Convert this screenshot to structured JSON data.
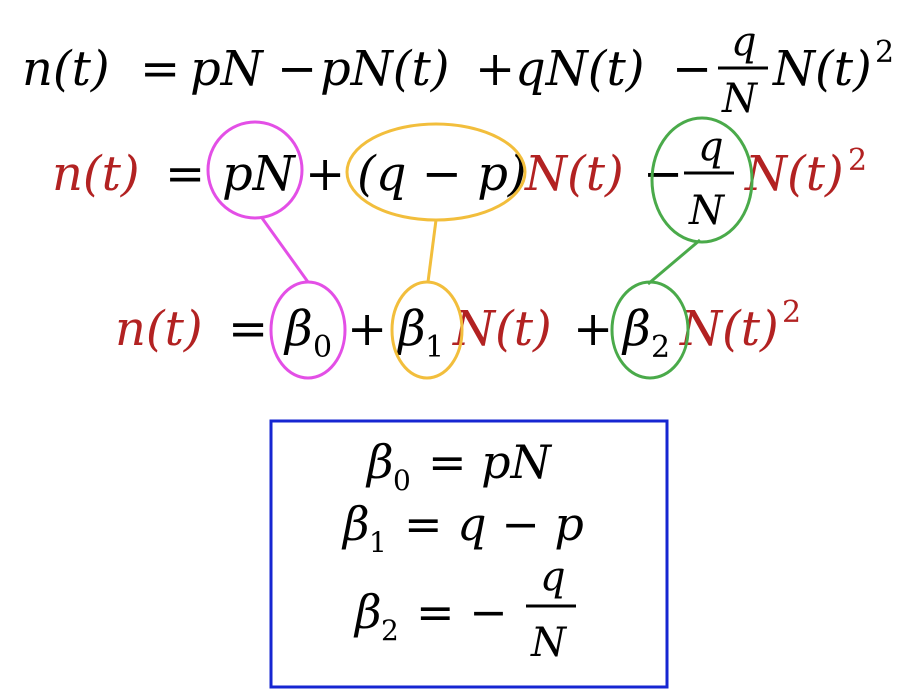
{
  "colors": {
    "black": "#000000",
    "red": "#b22222",
    "magenta": "#e34fe6",
    "orange": "#f2be3c",
    "green": "#4aaa4a",
    "box": "#1626d2"
  },
  "line1": {
    "lhs": "n(t)",
    "eq": "=",
    "t1": "pN",
    "op1": "−",
    "t2": "pN(t)",
    "op2": "+",
    "t3": "qN(t)",
    "op3": "−",
    "frac_num": "q",
    "frac_den": "N",
    "t4": "N(t)",
    "exp": "2"
  },
  "line2": {
    "lhs": "n(t)",
    "eq": "=",
    "t1": "pN",
    "op1": "+",
    "t2": "(q − p)",
    "t3": "N(t)",
    "op2": "−",
    "frac_num": "q",
    "frac_den": "N",
    "t4": "N(t)",
    "exp": "2"
  },
  "line3": {
    "lhs": "n(t)",
    "eq": "=",
    "b": "β",
    "sub0": "0",
    "op1": "+",
    "sub1": "1",
    "t1": "N(t)",
    "op2": "+",
    "sub2": "2",
    "t2": "N(t)",
    "exp": "2"
  },
  "box": {
    "b": "β",
    "sub0": "0",
    "rhs0": "= pN",
    "sub1": "1",
    "rhs1": "= q − p",
    "sub2": "2",
    "rhs2": "= −",
    "frac_num": "q",
    "frac_den": "N"
  }
}
